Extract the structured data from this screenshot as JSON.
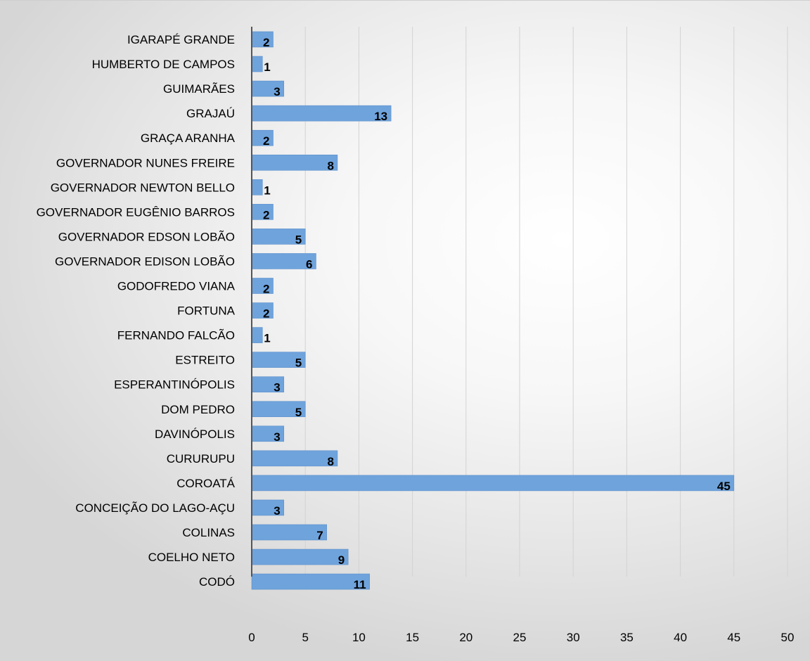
{
  "chart_data": {
    "type": "bar",
    "orientation": "horizontal",
    "categories": [
      "IGARAPÉ GRANDE",
      "HUMBERTO DE CAMPOS",
      "GUIMARÃES",
      "GRAJAÚ",
      "GRAÇA ARANHA",
      "GOVERNADOR NUNES FREIRE",
      "GOVERNADOR NEWTON BELLO",
      "GOVERNADOR EUGÊNIO BARROS",
      "GOVERNADOR EDSON LOBÃO",
      "GOVERNADOR EDISON LOBÃO",
      "GODOFREDO VIANA",
      "FORTUNA",
      "FERNANDO FALCÃO",
      "ESTREITO",
      "ESPERANTINÓPOLIS",
      "DOM PEDRO",
      "DAVINÓPOLIS",
      "CURURUPU",
      "COROATÁ",
      "CONCEIÇÃO DO LAGO-AÇU",
      "COLINAS",
      "COELHO NETO",
      "CODÓ"
    ],
    "values": [
      2,
      1,
      3,
      13,
      2,
      8,
      1,
      2,
      5,
      6,
      2,
      2,
      1,
      5,
      3,
      5,
      3,
      8,
      45,
      3,
      7,
      9,
      11
    ],
    "data_labels": [
      "2",
      "1",
      "3",
      "13",
      "2",
      "8",
      "1",
      "2",
      "5",
      "6",
      "2",
      "2",
      "1",
      "5",
      "3",
      "5",
      "3",
      "8",
      "45",
      "3",
      "7",
      "9",
      "11"
    ],
    "xticks": [
      "0",
      "5",
      "10",
      "15",
      "20",
      "25",
      "30",
      "35",
      "40",
      "45",
      "50"
    ],
    "xlim": [
      0,
      50
    ],
    "grid": "vertical",
    "legend": "none",
    "title": "",
    "xlabel": "",
    "ylabel": ""
  },
  "colors": {
    "bar": "#6fa3dc",
    "bar_edge": "#5b8fca",
    "grid": "#d3d3d3",
    "axis": "#555555"
  }
}
